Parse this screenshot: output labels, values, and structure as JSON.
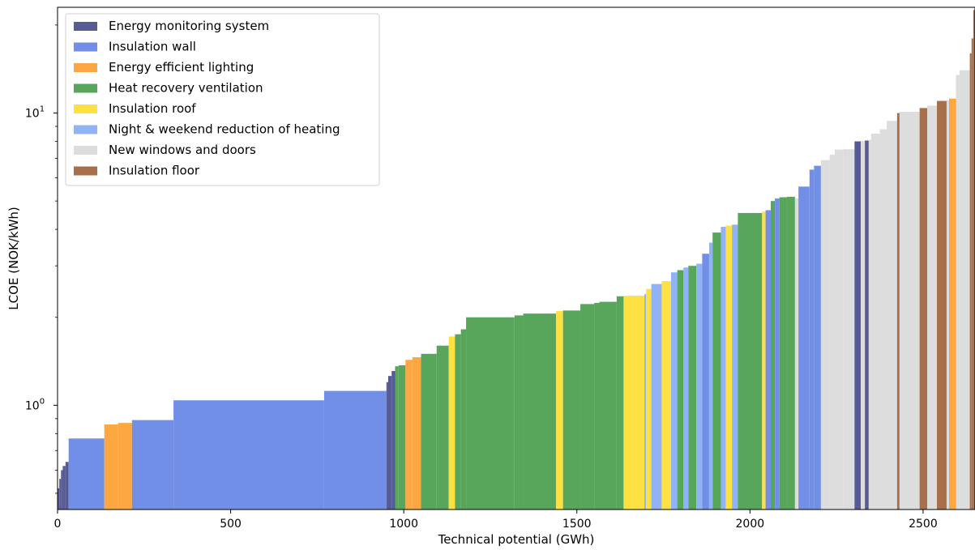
{
  "chart_data": {
    "type": "bar",
    "xlabel": "Technical potential (GWh)",
    "ylabel": "LCOE (NOK/kWh)",
    "yscale": "log",
    "xlim": [
      0,
      2650
    ],
    "ylim": [
      0.44,
      23
    ],
    "x_ticks": [
      {
        "value": 0,
        "label": "0"
      },
      {
        "value": 500,
        "label": "500"
      },
      {
        "value": 1000,
        "label": "1000"
      },
      {
        "value": 1500,
        "label": "1500"
      },
      {
        "value": 2000,
        "label": "2000"
      },
      {
        "value": 2500,
        "label": "2500"
      }
    ],
    "y_ticks": [
      {
        "value": 1,
        "base": "10",
        "exp": "0"
      },
      {
        "value": 10,
        "base": "10",
        "exp": "1"
      }
    ],
    "grid": false,
    "legend_position": "top-left",
    "legend": [
      {
        "name": "Energy monitoring system",
        "color": "#575b95"
      },
      {
        "name": "Insulation wall",
        "color": "#718fe6"
      },
      {
        "name": "Energy efficient lighting",
        "color": "#fca742"
      },
      {
        "name": "Heat recovery ventilation",
        "color": "#58a55c"
      },
      {
        "name": "Insulation roof",
        "color": "#fde142"
      },
      {
        "name": "Night & weekend reduction of heating",
        "color": "#8fb3f6"
      },
      {
        "name": "New windows and doors",
        "color": "#dddddd"
      },
      {
        "name": "Insulation floor",
        "color": "#a7704b"
      }
    ],
    "bars": [
      {
        "x0": 0,
        "x1": 5,
        "y": 0.52,
        "series": "Energy monitoring system"
      },
      {
        "x0": 5,
        "x1": 10,
        "y": 0.56,
        "series": "Energy monitoring system"
      },
      {
        "x0": 10,
        "x1": 15,
        "y": 0.6,
        "series": "Energy monitoring system"
      },
      {
        "x0": 15,
        "x1": 23,
        "y": 0.62,
        "series": "Energy monitoring system"
      },
      {
        "x0": 23,
        "x1": 32,
        "y": 0.64,
        "series": "Energy monitoring system"
      },
      {
        "x0": 32,
        "x1": 135,
        "y": 0.77,
        "series": "Insulation wall"
      },
      {
        "x0": 135,
        "x1": 175,
        "y": 0.86,
        "series": "Energy efficient lighting"
      },
      {
        "x0": 175,
        "x1": 215,
        "y": 0.87,
        "series": "Energy efficient lighting"
      },
      {
        "x0": 215,
        "x1": 335,
        "y": 0.89,
        "series": "Insulation wall"
      },
      {
        "x0": 335,
        "x1": 770,
        "y": 1.04,
        "series": "Insulation wall"
      },
      {
        "x0": 770,
        "x1": 950,
        "y": 1.12,
        "series": "Insulation wall"
      },
      {
        "x0": 950,
        "x1": 955,
        "y": 1.2,
        "series": "Energy monitoring system"
      },
      {
        "x0": 955,
        "x1": 965,
        "y": 1.26,
        "series": "Energy monitoring system"
      },
      {
        "x0": 965,
        "x1": 975,
        "y": 1.31,
        "series": "Energy monitoring system"
      },
      {
        "x0": 975,
        "x1": 985,
        "y": 1.36,
        "series": "Heat recovery ventilation"
      },
      {
        "x0": 985,
        "x1": 1005,
        "y": 1.37,
        "series": "Heat recovery ventilation"
      },
      {
        "x0": 1005,
        "x1": 1025,
        "y": 1.43,
        "series": "Energy efficient lighting"
      },
      {
        "x0": 1025,
        "x1": 1050,
        "y": 1.46,
        "series": "Energy efficient lighting"
      },
      {
        "x0": 1050,
        "x1": 1095,
        "y": 1.5,
        "series": "Heat recovery ventilation"
      },
      {
        "x0": 1095,
        "x1": 1130,
        "y": 1.6,
        "series": "Heat recovery ventilation"
      },
      {
        "x0": 1130,
        "x1": 1148,
        "y": 1.72,
        "series": "Insulation roof"
      },
      {
        "x0": 1148,
        "x1": 1165,
        "y": 1.75,
        "series": "Heat recovery ventilation"
      },
      {
        "x0": 1165,
        "x1": 1180,
        "y": 1.82,
        "series": "Heat recovery ventilation"
      },
      {
        "x0": 1180,
        "x1": 1320,
        "y": 2.0,
        "series": "Heat recovery ventilation"
      },
      {
        "x0": 1320,
        "x1": 1345,
        "y": 2.03,
        "series": "Heat recovery ventilation"
      },
      {
        "x0": 1345,
        "x1": 1440,
        "y": 2.06,
        "series": "Heat recovery ventilation"
      },
      {
        "x0": 1440,
        "x1": 1460,
        "y": 2.1,
        "series": "Insulation roof"
      },
      {
        "x0": 1460,
        "x1": 1510,
        "y": 2.11,
        "series": "Heat recovery ventilation"
      },
      {
        "x0": 1510,
        "x1": 1550,
        "y": 2.22,
        "series": "Heat recovery ventilation"
      },
      {
        "x0": 1550,
        "x1": 1565,
        "y": 2.24,
        "series": "Heat recovery ventilation"
      },
      {
        "x0": 1565,
        "x1": 1615,
        "y": 2.26,
        "series": "Heat recovery ventilation"
      },
      {
        "x0": 1615,
        "x1": 1635,
        "y": 2.36,
        "series": "Heat recovery ventilation"
      },
      {
        "x0": 1635,
        "x1": 1695,
        "y": 2.37,
        "series": "Insulation roof"
      },
      {
        "x0": 1695,
        "x1": 1700,
        "y": 2.4,
        "series": "Night & weekend reduction of heating"
      },
      {
        "x0": 1700,
        "x1": 1715,
        "y": 2.5,
        "series": "Insulation roof"
      },
      {
        "x0": 1715,
        "x1": 1745,
        "y": 2.6,
        "series": "Night & weekend reduction of heating"
      },
      {
        "x0": 1745,
        "x1": 1772,
        "y": 2.66,
        "series": "Insulation roof"
      },
      {
        "x0": 1772,
        "x1": 1790,
        "y": 2.85,
        "series": "Night & weekend reduction of heating"
      },
      {
        "x0": 1790,
        "x1": 1808,
        "y": 2.9,
        "series": "Heat recovery ventilation"
      },
      {
        "x0": 1808,
        "x1": 1822,
        "y": 2.96,
        "series": "Night & weekend reduction of heating"
      },
      {
        "x0": 1822,
        "x1": 1845,
        "y": 3.0,
        "series": "Heat recovery ventilation"
      },
      {
        "x0": 1845,
        "x1": 1862,
        "y": 3.05,
        "series": "Night & weekend reduction of heating"
      },
      {
        "x0": 1862,
        "x1": 1882,
        "y": 3.3,
        "series": "Insulation wall"
      },
      {
        "x0": 1882,
        "x1": 1892,
        "y": 3.6,
        "series": "Night & weekend reduction of heating"
      },
      {
        "x0": 1892,
        "x1": 1916,
        "y": 3.9,
        "series": "Heat recovery ventilation"
      },
      {
        "x0": 1916,
        "x1": 1930,
        "y": 4.08,
        "series": "Night & weekend reduction of heating"
      },
      {
        "x0": 1930,
        "x1": 1948,
        "y": 4.12,
        "series": "Insulation roof"
      },
      {
        "x0": 1948,
        "x1": 1965,
        "y": 4.15,
        "series": "Night & weekend reduction of heating"
      },
      {
        "x0": 1965,
        "x1": 2035,
        "y": 4.55,
        "series": "Heat recovery ventilation"
      },
      {
        "x0": 2035,
        "x1": 2045,
        "y": 4.6,
        "series": "Insulation roof"
      },
      {
        "x0": 2045,
        "x1": 2060,
        "y": 4.65,
        "series": "Insulation wall"
      },
      {
        "x0": 2060,
        "x1": 2072,
        "y": 5.0,
        "series": "Heat recovery ventilation"
      },
      {
        "x0": 2072,
        "x1": 2085,
        "y": 5.1,
        "series": "Insulation wall"
      },
      {
        "x0": 2085,
        "x1": 2107,
        "y": 5.15,
        "series": "Heat recovery ventilation"
      },
      {
        "x0": 2107,
        "x1": 2130,
        "y": 5.17,
        "series": "Heat recovery ventilation"
      },
      {
        "x0": 2130,
        "x1": 2140,
        "y": 5.1,
        "series": "New windows and doors"
      },
      {
        "x0": 2140,
        "x1": 2172,
        "y": 5.6,
        "series": "Insulation wall"
      },
      {
        "x0": 2172,
        "x1": 2185,
        "y": 6.4,
        "series": "Insulation wall"
      },
      {
        "x0": 2185,
        "x1": 2205,
        "y": 6.6,
        "series": "Insulation wall"
      },
      {
        "x0": 2205,
        "x1": 2230,
        "y": 6.9,
        "series": "New windows and doors"
      },
      {
        "x0": 2230,
        "x1": 2245,
        "y": 7.2,
        "series": "New windows and doors"
      },
      {
        "x0": 2245,
        "x1": 2270,
        "y": 7.5,
        "series": "New windows and doors"
      },
      {
        "x0": 2270,
        "x1": 2302,
        "y": 7.52,
        "series": "New windows and doors"
      },
      {
        "x0": 2302,
        "x1": 2320,
        "y": 8.0,
        "series": "Energy monitoring system"
      },
      {
        "x0": 2320,
        "x1": 2332,
        "y": 8.02,
        "series": "New windows and doors"
      },
      {
        "x0": 2332,
        "x1": 2343,
        "y": 8.05,
        "series": "Energy monitoring system"
      },
      {
        "x0": 2343,
        "x1": 2350,
        "y": 8.1,
        "series": "New windows and doors"
      },
      {
        "x0": 2350,
        "x1": 2375,
        "y": 8.5,
        "series": "New windows and doors"
      },
      {
        "x0": 2375,
        "x1": 2395,
        "y": 8.8,
        "series": "New windows and doors"
      },
      {
        "x0": 2395,
        "x1": 2425,
        "y": 9.4,
        "series": "New windows and doors"
      },
      {
        "x0": 2425,
        "x1": 2432,
        "y": 10.0,
        "series": "Insulation floor"
      },
      {
        "x0": 2432,
        "x1": 2490,
        "y": 10.1,
        "series": "New windows and doors"
      },
      {
        "x0": 2490,
        "x1": 2512,
        "y": 10.4,
        "series": "Insulation floor"
      },
      {
        "x0": 2512,
        "x1": 2540,
        "y": 10.6,
        "series": "New windows and doors"
      },
      {
        "x0": 2540,
        "x1": 2568,
        "y": 11.0,
        "series": "Insulation floor"
      },
      {
        "x0": 2568,
        "x1": 2575,
        "y": 11.05,
        "series": "New windows and doors"
      },
      {
        "x0": 2575,
        "x1": 2595,
        "y": 11.2,
        "series": "Energy efficient lighting"
      },
      {
        "x0": 2595,
        "x1": 2605,
        "y": 13.5,
        "series": "New windows and doors"
      },
      {
        "x0": 2605,
        "x1": 2635,
        "y": 14.0,
        "series": "New windows and doors"
      },
      {
        "x0": 2635,
        "x1": 2640,
        "y": 16.0,
        "series": "Insulation floor"
      },
      {
        "x0": 2640,
        "x1": 2645,
        "y": 18.0,
        "series": "Insulation floor"
      },
      {
        "x0": 2645,
        "x1": 2650,
        "y": 22.5,
        "series": "Insulation floor"
      }
    ]
  }
}
